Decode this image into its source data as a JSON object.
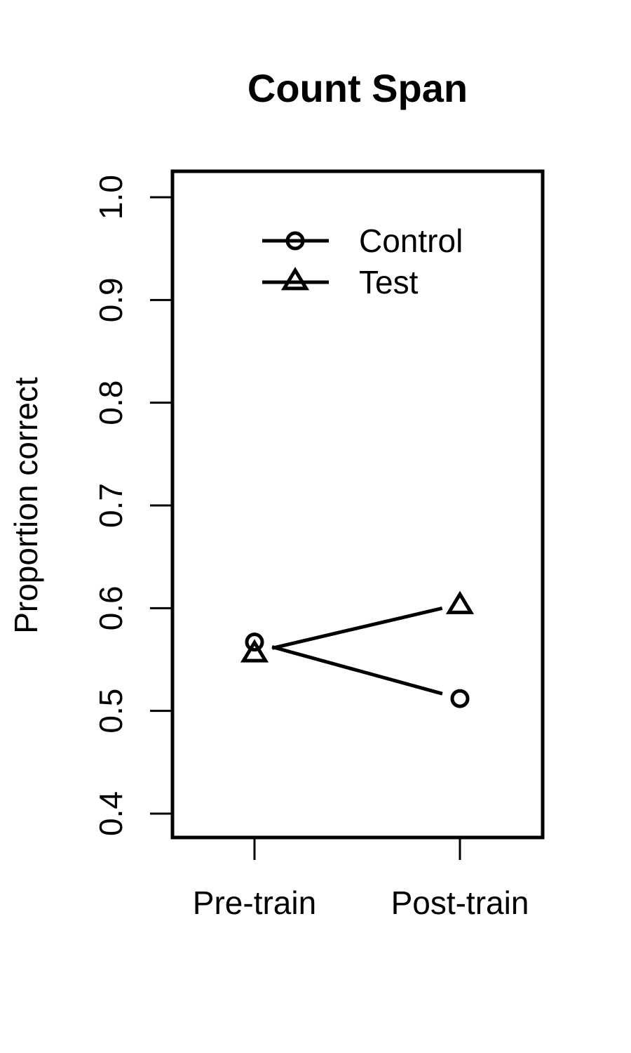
{
  "chart_data": {
    "type": "line",
    "title": "Count Span",
    "xlabel": "",
    "ylabel": "Proportion correct",
    "categories": [
      "Pre-train",
      "Post-train"
    ],
    "yticks": [
      "0.4",
      "0.5",
      "0.6",
      "0.7",
      "0.8",
      "0.9",
      "1.0"
    ],
    "ylim": [
      0.4,
      1.0
    ],
    "grid": false,
    "legend_position": "top",
    "series": [
      {
        "name": "Control",
        "marker": "circle",
        "values": [
          0.567,
          0.512
        ]
      },
      {
        "name": "Test",
        "marker": "triangle",
        "values": [
          0.557,
          0.604
        ]
      }
    ]
  }
}
